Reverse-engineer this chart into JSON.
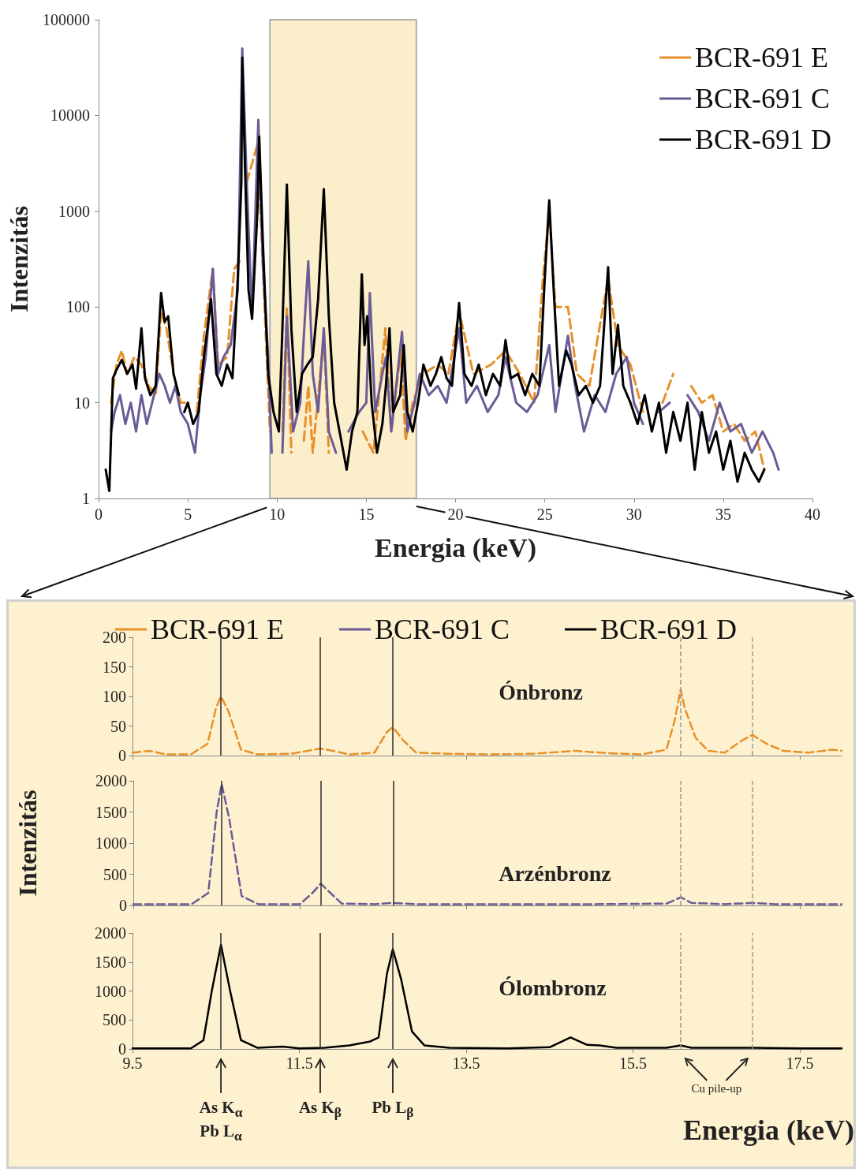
{
  "chart_data": [
    {
      "type": "line",
      "xlabel": "Energia (keV)",
      "ylabel": "Intenzitás",
      "xlim": [
        0,
        40
      ],
      "xticks": [
        0,
        5,
        10,
        15,
        20,
        25,
        30,
        35,
        40
      ],
      "ylim": [
        1,
        100000
      ],
      "yticks": [
        1,
        10,
        100,
        1000,
        10000,
        100000
      ],
      "log": "y",
      "grid": false,
      "legend": "top right",
      "marker": "none",
      "bands": [
        {
          "axis": "x",
          "from": 9.6,
          "to": 17.8,
          "color": "#fbeecb"
        }
      ],
      "series": [
        {
          "name": "BCR-691 E",
          "color": "#e8902a",
          "line_style": "dashed",
          "x": [
            0.7,
            1.0,
            1.3,
            1.6,
            2.0,
            2.4,
            2.8,
            3.2,
            3.5,
            3.8,
            4.2,
            4.6,
            5.0,
            5.3,
            5.5,
            5.9,
            6.4,
            6.7,
            7.2,
            7.6,
            7.9,
            8.05,
            8.3,
            8.9,
            9.3,
            9.6,
            9.9,
            10.3,
            10.55,
            10.8,
            11.1,
            11.5,
            11.75,
            12.0,
            12.62,
            12.9,
            13.2,
            14.8,
            15.4,
            16.07,
            16.4,
            16.93,
            17.2,
            17.6,
            18.2,
            19.0,
            19.6,
            20.2,
            21.0,
            22.0,
            22.8,
            23.6,
            24.4,
            24.9,
            25.25,
            25.6,
            26.3,
            26.8,
            27.5,
            28.55,
            29.1,
            29.8,
            30.5,
            31.2,
            31.6,
            32.2,
            32.7,
            33.2,
            33.8,
            34.4,
            35.0,
            35.6,
            36.2,
            36.8,
            37.3
          ],
          "values": [
            10,
            25,
            35,
            20,
            30,
            25,
            15,
            12,
            90,
            60,
            20,
            10,
            10,
            null,
            8,
            50,
            250,
            25,
            30,
            250,
            300,
            null,
            2000,
            5000,
            100,
            5,
            null,
            5,
            100,
            3,
            null,
            4,
            15,
            3,
            50,
            3,
            null,
            5,
            3,
            60,
            5,
            35,
            4,
            10,
            20,
            25,
            20,
            90,
            20,
            25,
            35,
            20,
            10,
            200,
            1000,
            100,
            100,
            20,
            15,
            200,
            40,
            25,
            8,
            null,
            10,
            20,
            null,
            15,
            10,
            12,
            5,
            6,
            4,
            5,
            2
          ]
        },
        {
          "name": "BCR-691 C",
          "color": "#6b5b95",
          "line_style": "solid",
          "x": [
            0.7,
            0.9,
            1.2,
            1.5,
            1.8,
            2.1,
            2.4,
            2.7,
            3.0,
            3.4,
            3.7,
            4.0,
            4.3,
            4.6,
            5.0,
            5.4,
            5.7,
            6.0,
            6.4,
            6.7,
            7.0,
            7.4,
            7.8,
            8.05,
            8.3,
            8.6,
            8.95,
            9.2,
            9.5,
            9.7,
            10.0,
            10.3,
            10.55,
            10.9,
            11.3,
            11.5,
            11.75,
            12.0,
            12.3,
            12.62,
            12.9,
            13.3,
            13.7,
            14.0,
            14.6,
            15.0,
            15.2,
            15.5,
            15.9,
            16.1,
            16.4,
            17.0,
            17.3,
            17.7,
            18.0,
            18.5,
            19.0,
            19.5,
            20.2,
            20.6,
            21.2,
            21.8,
            22.4,
            22.8,
            23.4,
            24.0,
            24.6,
            25.25,
            25.6,
            26.3,
            26.7,
            27.2,
            27.8,
            28.4,
            29.0,
            29.6,
            30.0,
            30.5,
            31.0,
            31.4,
            32.0,
            32.6,
            33.0,
            33.6,
            34.2,
            34.8,
            35.4,
            36.0,
            36.6,
            37.2,
            37.8,
            38.1
          ],
          "values": [
            5,
            8,
            12,
            6,
            10,
            5,
            12,
            6,
            10,
            20,
            15,
            10,
            15,
            8,
            6,
            3,
            12,
            30,
            250,
            20,
            30,
            40,
            150,
            50000,
            2000,
            80,
            9000,
            300,
            30,
            3,
            null,
            3,
            80,
            5,
            10,
            50,
            300,
            20,
            8,
            60,
            5,
            3,
            null,
            5,
            8,
            10,
            140,
            8,
            20,
            30,
            5,
            55,
            5,
            10,
            20,
            12,
            15,
            10,
            60,
            10,
            15,
            8,
            12,
            30,
            10,
            8,
            12,
            40,
            8,
            50,
            15,
            5,
            12,
            8,
            20,
            30,
            10,
            6,
            null,
            8,
            10,
            null,
            12,
            8,
            4,
            10,
            5,
            6,
            3,
            5,
            3,
            2
          ]
        },
        {
          "name": "BCR-691 D",
          "color": "#000000",
          "line_style": "solid",
          "x": [
            0.4,
            0.6,
            0.8,
            1.0,
            1.3,
            1.6,
            1.9,
            2.1,
            2.4,
            2.6,
            2.9,
            3.2,
            3.5,
            3.7,
            3.9,
            4.2,
            4.5,
            4.7,
            4.8,
            5.0,
            5.3,
            5.6,
            5.9,
            6.3,
            6.6,
            6.9,
            7.2,
            7.5,
            7.8,
            8.0,
            8.05,
            8.2,
            8.4,
            8.6,
            8.9,
            9.0,
            9.2,
            9.5,
            9.8,
            10.1,
            10.3,
            10.55,
            10.8,
            11.1,
            11.4,
            11.7,
            12.0,
            12.3,
            12.62,
            12.9,
            13.2,
            13.6,
            13.9,
            14.2,
            14.5,
            14.75,
            14.9,
            15.05,
            15.3,
            15.6,
            15.9,
            16.1,
            16.3,
            16.5,
            16.9,
            17.1,
            17.3,
            17.6,
            17.9,
            18.2,
            18.6,
            18.9,
            19.2,
            19.5,
            19.8,
            20.2,
            20.5,
            20.9,
            21.3,
            21.7,
            22.1,
            22.5,
            22.8,
            23.1,
            23.5,
            23.9,
            24.3,
            24.7,
            25.0,
            25.25,
            25.5,
            25.8,
            26.2,
            26.5,
            26.9,
            27.3,
            27.7,
            28.1,
            28.55,
            28.8,
            29.1,
            29.4,
            29.8,
            30.2,
            30.6,
            31.0,
            31.4,
            31.8,
            32.2,
            32.6,
            33.0,
            33.4,
            33.8,
            34.2,
            34.6,
            35.0,
            35.4,
            35.8,
            36.2,
            36.6,
            37.0,
            37.3
          ],
          "values": [
            2,
            1.2,
            18,
            22,
            28,
            20,
            25,
            14,
            60,
            18,
            12,
            15,
            140,
            70,
            80,
            20,
            12,
            null,
            8,
            10,
            6,
            8,
            30,
            120,
            20,
            15,
            25,
            18,
            200,
            2000,
            40000,
            3000,
            150,
            75,
            1000,
            6000,
            500,
            20,
            8,
            5,
            60,
            1900,
            60,
            8,
            20,
            25,
            30,
            120,
            1700,
            80,
            10,
            4,
            2,
            5,
            8,
            220,
            40,
            80,
            10,
            3,
            6,
            15,
            60,
            8,
            12,
            40,
            8,
            5,
            10,
            25,
            15,
            20,
            30,
            18,
            15,
            110,
            20,
            15,
            25,
            12,
            20,
            15,
            45,
            18,
            20,
            12,
            20,
            15,
            200,
            1300,
            150,
            15,
            35,
            25,
            12,
            15,
            10,
            15,
            260,
            20,
            65,
            15,
            10,
            6,
            12,
            5,
            10,
            3,
            8,
            4,
            10,
            2,
            8,
            3,
            5,
            2,
            4,
            1.5,
            3,
            2,
            1.5,
            2
          ]
        }
      ]
    },
    {
      "type": "line",
      "xlim": [
        9.5,
        18
      ],
      "xticks": [
        9.5,
        11.5,
        13.5,
        15.5,
        17.5
      ],
      "ylim": [
        0,
        200
      ],
      "yticks": [
        0,
        50,
        100,
        150,
        200
      ],
      "tick_labels": "y",
      "grid": false,
      "legend": "top",
      "marker": "none",
      "annotations": [
        "Ónbronz"
      ],
      "ref_lines": [
        {
          "axis": "x",
          "value": 10.56,
          "color": "#2b2b2b",
          "line_style": "solid"
        },
        {
          "axis": "x",
          "value": 11.75,
          "color": "#2b2b2b",
          "line_style": "solid"
        },
        {
          "axis": "x",
          "value": 12.62,
          "color": "#2b2b2b",
          "line_style": "solid"
        },
        {
          "axis": "x",
          "value": 16.07,
          "color": "#9a9a9a",
          "line_style": "dashed"
        },
        {
          "axis": "x",
          "value": 16.93,
          "color": "#9a9a9a",
          "line_style": "dashed"
        }
      ],
      "series": [
        {
          "name": "BCR-691 E",
          "color": "#e8902a",
          "line_style": "dashed",
          "x": [
            9.5,
            9.7,
            9.9,
            10.2,
            10.4,
            10.5,
            10.56,
            10.65,
            10.8,
            11.0,
            11.4,
            11.6,
            11.75,
            11.9,
            12.1,
            12.4,
            12.55,
            12.62,
            12.75,
            12.9,
            13.3,
            13.8,
            14.3,
            14.8,
            15.2,
            15.6,
            15.9,
            16.0,
            16.07,
            16.12,
            16.25,
            16.4,
            16.6,
            16.8,
            16.93,
            17.1,
            17.3,
            17.6,
            17.9,
            18.0
          ],
          "values": [
            5,
            8,
            2,
            2,
            20,
            80,
            100,
            75,
            10,
            2,
            3,
            8,
            12,
            8,
            2,
            5,
            40,
            48,
            25,
            5,
            3,
            2,
            3,
            8,
            4,
            2,
            10,
            60,
            112,
            80,
            30,
            8,
            5,
            25,
            35,
            20,
            8,
            5,
            10,
            8
          ]
        }
      ]
    },
    {
      "type": "line",
      "ylabel": "Intenzitás",
      "xlim": [
        9.5,
        18
      ],
      "xticks": [
        9.5,
        11.5,
        13.5,
        15.5,
        17.5
      ],
      "ylim": [
        0,
        2000
      ],
      "yticks": [
        0,
        500,
        1000,
        1500,
        2000
      ],
      "tick_labels": "y",
      "grid": false,
      "marker": "none",
      "annotations": [
        "Arzénbronz"
      ],
      "ref_lines": [
        {
          "axis": "x",
          "value": 10.56,
          "color": "#2b2b2b",
          "line_style": "solid"
        },
        {
          "axis": "x",
          "value": 11.75,
          "color": "#2b2b2b",
          "line_style": "solid"
        },
        {
          "axis": "x",
          "value": 12.62,
          "color": "#2b2b2b",
          "line_style": "solid"
        },
        {
          "axis": "x",
          "value": 16.07,
          "color": "#9a9a9a",
          "line_style": "dashed"
        },
        {
          "axis": "x",
          "value": 16.93,
          "color": "#9a9a9a",
          "line_style": "dashed"
        }
      ],
      "series": [
        {
          "name": "BCR-691 C",
          "color": "#6b5b95",
          "line_style": "dashed",
          "x": [
            9.5,
            10.2,
            10.4,
            10.5,
            10.56,
            10.65,
            10.8,
            11.0,
            11.5,
            11.65,
            11.75,
            11.85,
            12.0,
            12.4,
            12.62,
            12.9,
            14.0,
            15.0,
            15.9,
            16.07,
            16.2,
            16.6,
            16.93,
            17.2,
            18.0
          ],
          "values": [
            20,
            20,
            200,
            1500,
            1950,
            1400,
            150,
            20,
            20,
            200,
            350,
            220,
            30,
            20,
            40,
            20,
            20,
            20,
            30,
            130,
            40,
            20,
            40,
            20,
            20
          ]
        }
      ]
    },
    {
      "type": "line",
      "xlabel": "Energia (keV)",
      "xlim": [
        9.5,
        18
      ],
      "xticks": [
        9.5,
        11.5,
        13.5,
        15.5,
        17.5
      ],
      "ylim": [
        0,
        2000
      ],
      "yticks": [
        0,
        500,
        1000,
        1500,
        2000
      ],
      "grid": false,
      "marker": "none",
      "annotations": [
        "Ólombronz",
        "As K$_{α}$",
        "Pb L$_{α}$",
        "As K$_{β}$",
        "Pb L$_{β}$",
        "Cu pile-up"
      ],
      "ref_lines": [
        {
          "axis": "x",
          "value": 10.56,
          "color": "#2b2b2b",
          "line_style": "solid"
        },
        {
          "axis": "x",
          "value": 11.75,
          "color": "#2b2b2b",
          "line_style": "solid"
        },
        {
          "axis": "x",
          "value": 12.62,
          "color": "#2b2b2b",
          "line_style": "solid"
        },
        {
          "axis": "x",
          "value": 16.07,
          "color": "#9a9a9a",
          "line_style": "dashed"
        },
        {
          "axis": "x",
          "value": 16.93,
          "color": "#9a9a9a",
          "line_style": "dashed"
        }
      ],
      "series": [
        {
          "name": "BCR-691 D",
          "color": "#000000",
          "line_style": "solid",
          "x": [
            9.5,
            10.2,
            10.35,
            10.45,
            10.56,
            10.67,
            10.8,
            11.0,
            11.3,
            11.5,
            11.8,
            12.1,
            12.35,
            12.45,
            12.55,
            12.62,
            12.72,
            12.85,
            13.0,
            13.3,
            14.0,
            14.5,
            14.75,
            14.95,
            15.1,
            15.3,
            15.9,
            16.07,
            16.2,
            16.93,
            17.5,
            18.0
          ],
          "values": [
            10,
            10,
            150,
            1000,
            1800,
            1000,
            150,
            20,
            40,
            10,
            20,
            60,
            130,
            200,
            1300,
            1720,
            1200,
            300,
            60,
            20,
            10,
            30,
            200,
            70,
            60,
            20,
            20,
            60,
            20,
            20,
            10,
            10
          ]
        }
      ]
    }
  ]
}
